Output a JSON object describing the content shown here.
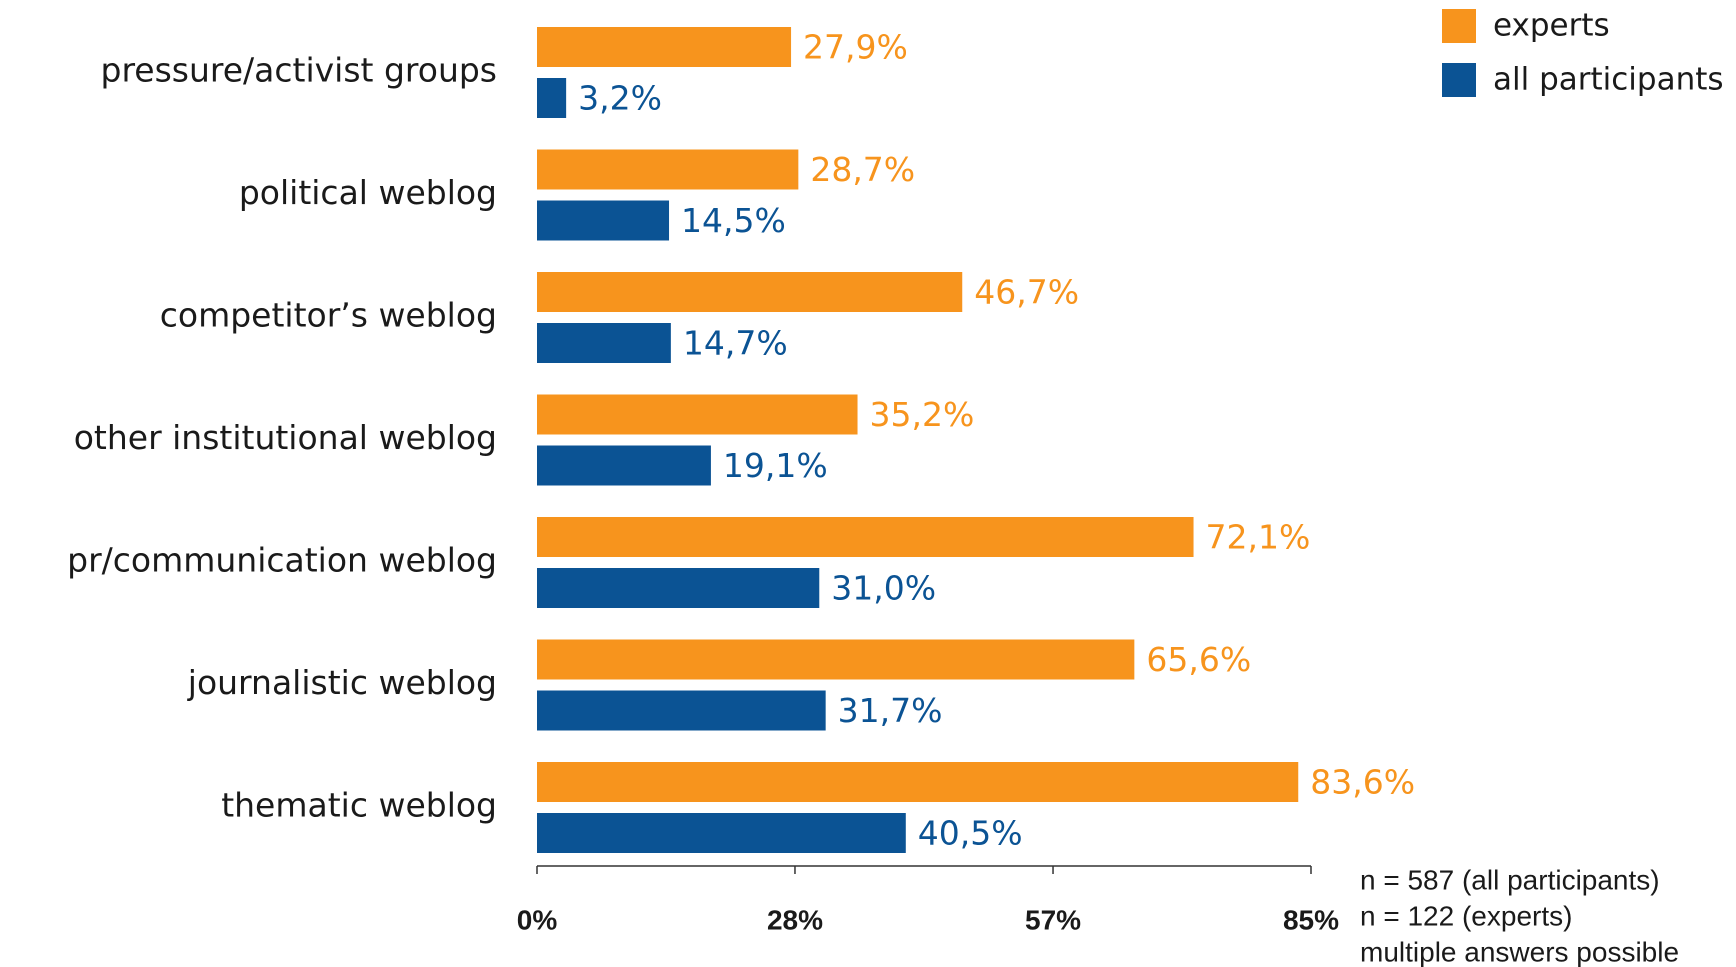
{
  "chart_data": {
    "type": "bar",
    "orientation": "horizontal",
    "categories": [
      "pressure/activist  groups",
      "political weblog",
      "competitor’s weblog",
      "other institutional weblog",
      "pr/communication weblog",
      "journalistic weblog",
      "thematic weblog"
    ],
    "series": [
      {
        "name": "experts",
        "color": "#f7941d",
        "values": [
          27.9,
          28.7,
          46.7,
          35.2,
          72.1,
          65.6,
          83.6
        ],
        "value_labels": [
          "27,9%",
          "28,7%",
          "46,7%",
          "35,2%",
          "72,1%",
          "65,6%",
          "83,6%"
        ]
      },
      {
        "name": "all participants",
        "color": "#0b5394",
        "values": [
          3.2,
          14.5,
          14.7,
          19.1,
          31.0,
          31.7,
          40.5
        ],
        "value_labels": [
          "3,2%",
          "14,5%",
          "14,7%",
          "19,1%",
          "31,0%",
          "31,7%",
          "40,5%"
        ]
      }
    ],
    "xlim": [
      0,
      85
    ],
    "xticks": [
      {
        "value": 0,
        "label": "0%"
      },
      {
        "value": 28.33,
        "label": "28%"
      },
      {
        "value": 56.67,
        "label": "57%"
      },
      {
        "value": 85,
        "label": "85%"
      }
    ],
    "legend": "top-right",
    "annotations": [
      "n = 587 (all participants)",
      "n = 122 (experts)",
      "multiple answers possible"
    ]
  }
}
